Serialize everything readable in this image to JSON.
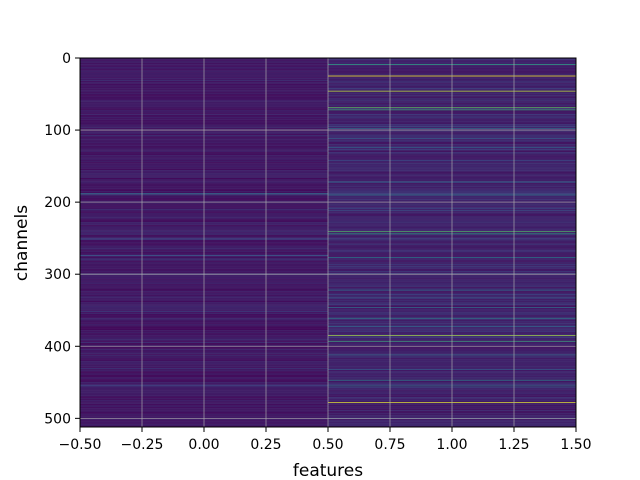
{
  "chart_data": {
    "type": "heatmap",
    "title": "",
    "xlabel": "features",
    "ylabel": "channels",
    "xlim": [
      -0.5,
      1.5
    ],
    "ylim": [
      512,
      0
    ],
    "grid": true,
    "colormap": "viridis",
    "x_ticks": [
      -0.5,
      -0.25,
      0.0,
      0.25,
      0.5,
      0.75,
      1.0,
      1.25,
      1.5
    ],
    "x_tick_labels": [
      "−0.50",
      "−0.25",
      "0.00",
      "0.25",
      "0.50",
      "0.75",
      "1.00",
      "1.25",
      "1.50"
    ],
    "y_ticks": [
      0,
      100,
      200,
      300,
      400,
      500
    ],
    "y_tick_labels": [
      "0",
      "100",
      "200",
      "300",
      "400",
      "500"
    ],
    "columns": [
      0,
      1
    ],
    "rows": 512,
    "column_baseline": [
      0.07,
      0.1
    ],
    "highlights": [
      {
        "column": 0,
        "channel": 188,
        "value": 0.35
      },
      {
        "column": 0,
        "channel": 190,
        "value": 0.3
      },
      {
        "column": 0,
        "channel": 274,
        "value": 0.28
      },
      {
        "column": 0,
        "channel": 362,
        "value": 0.22
      },
      {
        "column": 0,
        "channel": 455,
        "value": 0.24
      },
      {
        "column": 1,
        "channel": 9,
        "value": 0.55
      },
      {
        "column": 1,
        "channel": 25,
        "value": 1.0
      },
      {
        "column": 1,
        "channel": 46,
        "value": 0.9
      },
      {
        "column": 1,
        "channel": 69,
        "value": 0.75
      },
      {
        "column": 1,
        "channel": 72,
        "value": 0.6
      },
      {
        "column": 1,
        "channel": 98,
        "value": 0.35
      },
      {
        "column": 1,
        "channel": 112,
        "value": 0.3
      },
      {
        "column": 1,
        "channel": 124,
        "value": 0.32
      },
      {
        "column": 1,
        "channel": 172,
        "value": 0.35
      },
      {
        "column": 1,
        "channel": 190,
        "value": 0.4
      },
      {
        "column": 1,
        "channel": 212,
        "value": 0.28
      },
      {
        "column": 1,
        "channel": 241,
        "value": 0.7
      },
      {
        "column": 1,
        "channel": 244,
        "value": 0.55
      },
      {
        "column": 1,
        "channel": 277,
        "value": 0.4
      },
      {
        "column": 1,
        "channel": 322,
        "value": 0.38
      },
      {
        "column": 1,
        "channel": 333,
        "value": 0.3
      },
      {
        "column": 1,
        "channel": 346,
        "value": 0.35
      },
      {
        "column": 1,
        "channel": 361,
        "value": 0.45
      },
      {
        "column": 1,
        "channel": 372,
        "value": 0.35
      },
      {
        "column": 1,
        "channel": 385,
        "value": 0.85
      },
      {
        "column": 1,
        "channel": 393,
        "value": 0.6
      },
      {
        "column": 1,
        "channel": 412,
        "value": 0.35
      },
      {
        "column": 1,
        "channel": 432,
        "value": 0.3
      },
      {
        "column": 1,
        "channel": 447,
        "value": 0.45
      },
      {
        "column": 1,
        "channel": 455,
        "value": 0.4
      },
      {
        "column": 1,
        "channel": 478,
        "value": 0.95
      },
      {
        "column": 1,
        "channel": 500,
        "value": 0.3
      }
    ]
  }
}
